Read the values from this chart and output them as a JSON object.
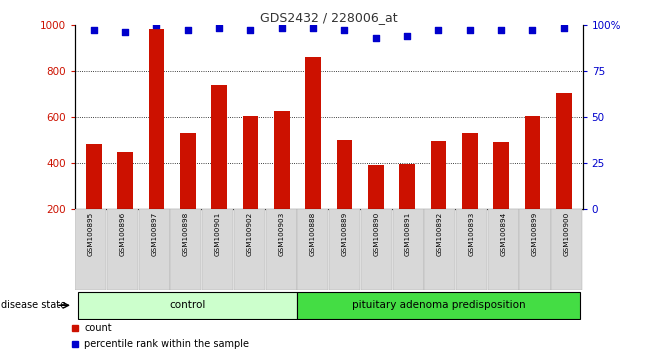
{
  "title": "GDS2432 / 228006_at",
  "samples": [
    "GSM100895",
    "GSM100896",
    "GSM100897",
    "GSM100898",
    "GSM100901",
    "GSM100902",
    "GSM100903",
    "GSM100888",
    "GSM100889",
    "GSM100890",
    "GSM100891",
    "GSM100892",
    "GSM100893",
    "GSM100894",
    "GSM100899",
    "GSM100900"
  ],
  "counts": [
    480,
    445,
    980,
    530,
    740,
    605,
    625,
    860,
    500,
    390,
    395,
    495,
    530,
    490,
    605,
    705
  ],
  "percentiles": [
    97,
    96,
    100,
    97,
    98,
    97,
    98,
    98,
    97,
    93,
    94,
    97,
    97,
    97,
    97,
    98
  ],
  "groups": [
    {
      "label": "control",
      "start": 0,
      "end": 7,
      "color": "#ccffcc"
    },
    {
      "label": "pituitary adenoma predisposition",
      "start": 7,
      "end": 16,
      "color": "#44dd44"
    }
  ],
  "bar_color": "#cc1100",
  "dot_color": "#0000cc",
  "ylim_left": [
    200,
    1000
  ],
  "ylim_right": [
    0,
    100
  ],
  "yticks_left": [
    200,
    400,
    600,
    800,
    1000
  ],
  "yticks_right": [
    0,
    25,
    50,
    75,
    100
  ],
  "yticklabels_right": [
    "0",
    "25",
    "50",
    "75",
    "100%"
  ],
  "grid_values": [
    400,
    600,
    800
  ],
  "bar_color_left": "#cc1100",
  "dot_color_right": "#0000cc",
  "legend_items": [
    {
      "label": "count",
      "color": "#cc1100"
    },
    {
      "label": "percentile rank within the sample",
      "color": "#0000cc"
    }
  ],
  "disease_state_label": "disease state",
  "bar_width": 0.5,
  "ticklabel_area_color": "#d8d8d8"
}
